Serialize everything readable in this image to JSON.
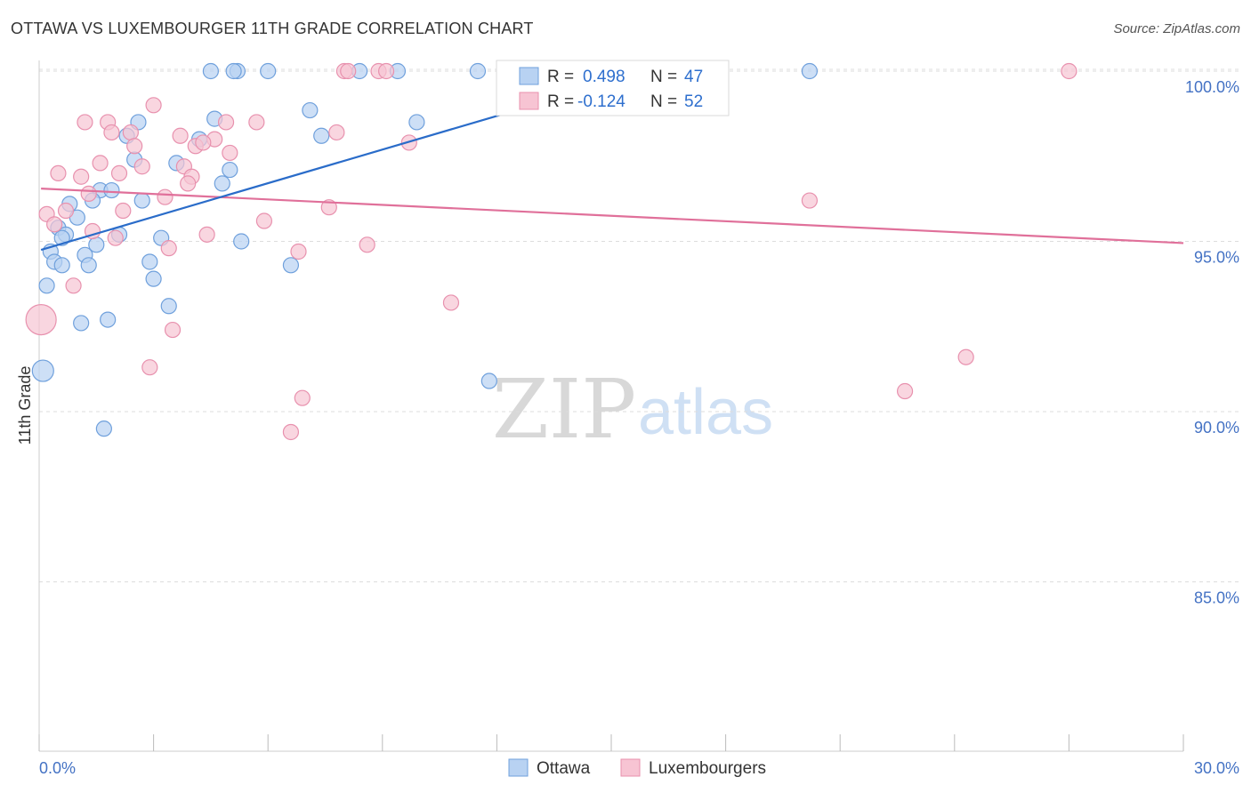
{
  "header": {
    "title": "OTTAWA VS LUXEMBOURGER 11TH GRADE CORRELATION CHART",
    "source": "Source: ZipAtlas.com"
  },
  "watermark": {
    "part1": "ZIP",
    "part2": "atlas"
  },
  "legend": {
    "r_label": "R =",
    "n_label": "N =",
    "series": [
      {
        "r": "0.498",
        "n": "47"
      },
      {
        "r": "-0.124",
        "n": "52"
      }
    ]
  },
  "bottom_legend": {
    "items": [
      "Ottawa",
      "Luxembourgers"
    ]
  },
  "chart_data": {
    "type": "scatter",
    "title": "OTTAWA VS LUXEMBOURGER 11TH GRADE CORRELATION CHART",
    "xlabel": "",
    "ylabel": "11th Grade",
    "xlim": [
      0,
      30
    ],
    "ylim": [
      80.5,
      100.4
    ],
    "x_tick_labels": [
      "0.0%",
      "30.0%"
    ],
    "y_ticks": [
      {
        "value": 100,
        "label": "100.0%"
      },
      {
        "value": 95,
        "label": "95.0%"
      },
      {
        "value": 90,
        "label": "90.0%"
      },
      {
        "value": 85,
        "label": "85.0%"
      }
    ],
    "colors": {
      "ottawa_fill": "#b8d2f2",
      "ottawa_stroke": "#6fa0dc",
      "ottawa_line": "#2a6cc9",
      "lux_fill": "#f7c4d3",
      "lux_stroke": "#e891ae",
      "lux_line": "#e0709a",
      "grid": "#dddddd",
      "axis_text": "#4472c4"
    },
    "series": [
      {
        "name": "Ottawa",
        "r": 0.498,
        "n": 47,
        "trend": {
          "x": [
            0.05,
            16.0
          ],
          "y": [
            94.75,
            100.0
          ]
        },
        "points": [
          [
            4.5,
            100.0
          ],
          [
            5.2,
            100.0
          ],
          [
            6.0,
            100.0
          ],
          [
            8.4,
            100.0
          ],
          [
            9.4,
            100.0
          ],
          [
            11.5,
            100.0
          ],
          [
            20.2,
            100.0
          ],
          [
            7.1,
            98.85
          ],
          [
            2.6,
            98.5
          ],
          [
            4.6,
            98.6
          ],
          [
            9.9,
            98.5
          ],
          [
            2.3,
            98.1
          ],
          [
            7.4,
            98.1
          ],
          [
            4.2,
            98.0
          ],
          [
            2.5,
            97.4
          ],
          [
            3.6,
            97.3
          ],
          [
            5.0,
            97.1
          ],
          [
            4.8,
            96.7
          ],
          [
            1.6,
            96.5
          ],
          [
            1.9,
            96.5
          ],
          [
            0.8,
            96.1
          ],
          [
            1.4,
            96.2
          ],
          [
            2.7,
            96.2
          ],
          [
            1.0,
            95.7
          ],
          [
            0.5,
            95.4
          ],
          [
            0.7,
            95.2
          ],
          [
            2.1,
            95.2
          ],
          [
            0.6,
            95.1
          ],
          [
            3.2,
            95.1
          ],
          [
            5.3,
            95.0
          ],
          [
            1.5,
            94.9
          ],
          [
            0.3,
            94.7
          ],
          [
            1.2,
            94.6
          ],
          [
            0.4,
            94.4
          ],
          [
            0.6,
            94.3
          ],
          [
            1.3,
            94.3
          ],
          [
            2.9,
            94.4
          ],
          [
            6.6,
            94.3
          ],
          [
            3.0,
            93.9
          ],
          [
            0.2,
            93.7
          ],
          [
            3.4,
            93.1
          ],
          [
            1.8,
            92.7
          ],
          [
            1.1,
            92.6
          ],
          [
            0.1,
            91.2
          ],
          [
            11.8,
            90.9
          ],
          [
            1.7,
            89.5
          ],
          [
            5.1,
            100.0
          ]
        ]
      },
      {
        "name": "Luxembourgers",
        "r": -0.124,
        "n": 52,
        "trend": {
          "x": [
            0.05,
            30.0
          ],
          "y": [
            96.55,
            94.95
          ]
        },
        "points": [
          [
            8.0,
            100.0
          ],
          [
            8.1,
            100.0
          ],
          [
            8.9,
            100.0
          ],
          [
            9.1,
            100.0
          ],
          [
            27.0,
            100.0
          ],
          [
            3.0,
            99.0
          ],
          [
            1.2,
            98.5
          ],
          [
            1.8,
            98.5
          ],
          [
            4.9,
            98.5
          ],
          [
            5.7,
            98.5
          ],
          [
            2.4,
            98.2
          ],
          [
            4.6,
            98.0
          ],
          [
            7.8,
            98.2
          ],
          [
            9.7,
            97.9
          ],
          [
            1.9,
            98.2
          ],
          [
            2.5,
            97.8
          ],
          [
            4.1,
            97.8
          ],
          [
            4.3,
            97.9
          ],
          [
            3.7,
            98.1
          ],
          [
            5.0,
            97.6
          ],
          [
            1.6,
            97.3
          ],
          [
            2.7,
            97.2
          ],
          [
            3.8,
            97.2
          ],
          [
            0.5,
            97.0
          ],
          [
            2.1,
            97.0
          ],
          [
            1.1,
            96.9
          ],
          [
            4.0,
            96.9
          ],
          [
            3.9,
            96.7
          ],
          [
            1.3,
            96.4
          ],
          [
            3.3,
            96.3
          ],
          [
            20.2,
            96.2
          ],
          [
            7.6,
            96.0
          ],
          [
            0.7,
            95.9
          ],
          [
            2.2,
            95.9
          ],
          [
            0.2,
            95.8
          ],
          [
            0.4,
            95.5
          ],
          [
            5.9,
            95.6
          ],
          [
            1.4,
            95.3
          ],
          [
            4.4,
            95.2
          ],
          [
            2.0,
            95.1
          ],
          [
            3.4,
            94.8
          ],
          [
            8.6,
            94.9
          ],
          [
            6.8,
            94.7
          ],
          [
            0.9,
            93.7
          ],
          [
            10.8,
            93.2
          ],
          [
            0.05,
            92.7
          ],
          [
            3.5,
            92.4
          ],
          [
            24.3,
            91.6
          ],
          [
            2.9,
            91.3
          ],
          [
            22.7,
            90.6
          ],
          [
            6.9,
            90.4
          ],
          [
            6.6,
            89.4
          ]
        ]
      }
    ]
  }
}
